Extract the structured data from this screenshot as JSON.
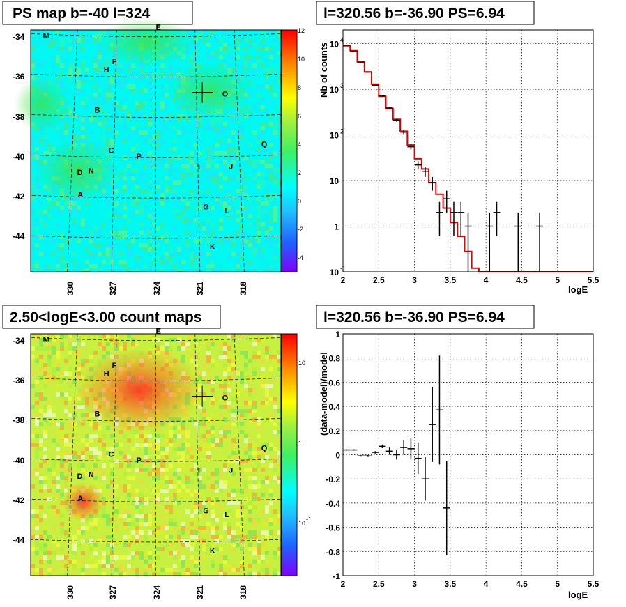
{
  "panels": {
    "top_left": {
      "title": "PS map b=-40 l=324",
      "colorbar_ticks": [
        "12",
        "10",
        "8",
        "6",
        "4",
        "2",
        "0",
        "-2",
        "-4"
      ],
      "colorbar_scale": "linear",
      "y_ticks": [
        "-34",
        "-36",
        "-38",
        "-40",
        "-42",
        "-44"
      ],
      "x_ticks": [
        "330",
        "327",
        "324",
        "321",
        "318"
      ]
    },
    "top_right": {
      "title": "l=320.56 b=-36.90 PS=6.94",
      "ylabel": "Nb of counts",
      "xlabel": "logE"
    },
    "bottom_left": {
      "title": "2.50<logE<3.00 count maps",
      "colorbar_ticks": [
        "10",
        "1",
        "10",
        "-1"
      ],
      "colorbar_scale": "log",
      "y_ticks": [
        "-34",
        "-36",
        "-38",
        "-40",
        "-42",
        "-44"
      ],
      "x_ticks": [
        "330",
        "327",
        "324",
        "321",
        "318"
      ]
    },
    "bottom_right": {
      "title": "l=320.56 b=-36.90 PS=6.94",
      "ylabel": "(data-model)/model",
      "xlabel": "logE"
    }
  },
  "sources": [
    {
      "label": "M",
      "l": 332.6,
      "b": -34.2
    },
    {
      "label": "E",
      "l": 324.0,
      "b": -33.8
    },
    {
      "label": "F",
      "l": 327.3,
      "b": -35.5
    },
    {
      "label": "H",
      "l": 327.9,
      "b": -35.9
    },
    {
      "label": "O",
      "l": 319.1,
      "b": -37.1
    },
    {
      "label": "B",
      "l": 328.5,
      "b": -37.9
    },
    {
      "label": "Q",
      "l": 316.4,
      "b": -39.6
    },
    {
      "label": "C",
      "l": 327.4,
      "b": -39.9
    },
    {
      "label": "P",
      "l": 325.4,
      "b": -40.2
    },
    {
      "label": "I",
      "l": 321.0,
      "b": -40.7
    },
    {
      "label": "J",
      "l": 318.8,
      "b": -40.7
    },
    {
      "label": "D",
      "l": 329.6,
      "b": -41.0
    },
    {
      "label": "N",
      "l": 328.8,
      "b": -40.9
    },
    {
      "label": "A",
      "l": 329.5,
      "b": -42.1
    },
    {
      "label": "G",
      "l": 320.7,
      "b": -42.7
    },
    {
      "label": "L",
      "l": 319.2,
      "b": -42.9
    },
    {
      "label": "K",
      "l": 320.3,
      "b": -44.7
    }
  ],
  "chart_data": [
    {
      "type": "heatmap",
      "title": "PS map b=-40 l=324",
      "xlabel": "",
      "ylabel": "",
      "xlim": [
        333,
        315
      ],
      "ylim": [
        -45.8,
        -33.8
      ],
      "color_range": [
        -5,
        12
      ],
      "marker": {
        "l": 320.56,
        "b": -36.9
      }
    },
    {
      "type": "line",
      "title": "l=320.56 b=-36.90 PS=6.94",
      "xlabel": "logE",
      "ylabel": "Nb of counts",
      "xlim": [
        2,
        5.5
      ],
      "ylim": [
        0.1,
        20000
      ],
      "yscale": "log",
      "x_ticks": [
        2,
        2.5,
        3,
        3.5,
        4,
        4.5,
        5,
        5.5
      ],
      "y_ticks": [
        {
          "v": 0.1,
          "label": "10",
          "exp": "-1"
        },
        {
          "v": 1,
          "label": "1",
          "exp": ""
        },
        {
          "v": 10,
          "label": "10",
          "exp": ""
        },
        {
          "v": 100,
          "label": "10",
          "exp": "2"
        },
        {
          "v": 1000,
          "label": "10",
          "exp": "3"
        },
        {
          "v": 10000,
          "label": "10",
          "exp": "4"
        }
      ],
      "grid": true,
      "series": [
        {
          "color": "#e00000",
          "bins_x": [
            2.0,
            2.1,
            2.2,
            2.3,
            2.4,
            2.5,
            2.6,
            2.7,
            2.8,
            2.9,
            3.0,
            3.1,
            3.2,
            3.3,
            3.4,
            3.5,
            3.6,
            3.7,
            3.8,
            3.9,
            4.0,
            5.5
          ],
          "values": [
            9000,
            7000,
            4000,
            2400,
            1300,
            700,
            380,
            220,
            120,
            60,
            30,
            18,
            9,
            5,
            2.5,
            1.2,
            0.6,
            0.28,
            0.12,
            0.1,
            0.1
          ]
        },
        {
          "color": "#000000",
          "points": [
            {
              "x": 2.05,
              "y": 9300,
              "lo": 9100,
              "hi": 9500
            },
            {
              "x": 2.15,
              "y": 6800,
              "lo": 6650,
              "hi": 6950
            },
            {
              "x": 2.25,
              "y": 3900,
              "lo": 3800,
              "hi": 4000
            },
            {
              "x": 2.35,
              "y": 2380,
              "lo": 2330,
              "hi": 2430
            },
            {
              "x": 2.45,
              "y": 1230,
              "lo": 1190,
              "hi": 1270
            },
            {
              "x": 2.55,
              "y": 720,
              "lo": 690,
              "hi": 750
            },
            {
              "x": 2.65,
              "y": 390,
              "lo": 370,
              "hi": 410
            },
            {
              "x": 2.75,
              "y": 210,
              "lo": 195,
              "hi": 225
            },
            {
              "x": 2.85,
              "y": 115,
              "lo": 104,
              "hi": 126
            },
            {
              "x": 2.95,
              "y": 55,
              "lo": 48,
              "hi": 62
            },
            {
              "x": 3.05,
              "y": 22,
              "lo": 17.5,
              "hi": 26.5
            },
            {
              "x": 3.15,
              "y": 16,
              "lo": 12,
              "hi": 20
            },
            {
              "x": 3.25,
              "y": 9,
              "lo": 6,
              "hi": 12
            },
            {
              "x": 3.35,
              "y": 2,
              "lo": 0.6,
              "hi": 3.4
            },
            {
              "x": 3.45,
              "y": 4,
              "lo": 2,
              "hi": 6
            },
            {
              "x": 3.55,
              "y": 2,
              "lo": 0.6,
              "hi": 3.4
            },
            {
              "x": 3.65,
              "y": 2,
              "lo": 0.6,
              "hi": 3.4
            },
            {
              "x": 3.75,
              "y": 1,
              "lo": 0.1,
              "hi": 2
            },
            {
              "x": 4.05,
              "y": 1,
              "lo": 0.1,
              "hi": 2
            },
            {
              "x": 4.15,
              "y": 2,
              "lo": 0.6,
              "hi": 3.4
            },
            {
              "x": 4.45,
              "y": 1,
              "lo": 0.1,
              "hi": 2
            },
            {
              "x": 4.75,
              "y": 1,
              "lo": 0.1,
              "hi": 2
            }
          ]
        }
      ]
    },
    {
      "type": "heatmap",
      "title": "2.50<logE<3.00 count maps",
      "xlabel": "",
      "ylabel": "",
      "xlim": [
        333,
        315
      ],
      "ylim": [
        -45.8,
        -33.8
      ],
      "color_scale": "log",
      "marker": {
        "l": 320.56,
        "b": -36.9
      }
    },
    {
      "type": "scatter",
      "title": "l=320.56 b=-36.90 PS=6.94",
      "xlabel": "logE",
      "ylabel": "(data-model)/model",
      "xlim": [
        2,
        5.5
      ],
      "ylim": [
        -1,
        1
      ],
      "x_ticks": [
        2,
        2.5,
        3,
        3.5,
        4,
        4.5,
        5,
        5.5
      ],
      "y_ticks": [
        -1,
        -0.8,
        -0.6,
        -0.4,
        -0.2,
        0,
        0.2,
        0.4,
        0.6,
        0.8,
        1
      ],
      "grid": true,
      "points": [
        {
          "x": 2.05,
          "y": 0.04,
          "lo": 0.035,
          "hi": 0.045
        },
        {
          "x": 2.15,
          "y": 0.04,
          "lo": 0.035,
          "hi": 0.045
        },
        {
          "x": 2.25,
          "y": -0.01,
          "lo": -0.016,
          "hi": -0.004
        },
        {
          "x": 2.35,
          "y": -0.01,
          "lo": -0.018,
          "hi": -0.002
        },
        {
          "x": 2.45,
          "y": 0.02,
          "lo": 0.01,
          "hi": 0.03
        },
        {
          "x": 2.55,
          "y": 0.07,
          "lo": 0.055,
          "hi": 0.085
        },
        {
          "x": 2.65,
          "y": 0.03,
          "lo": 0.0,
          "hi": 0.06
        },
        {
          "x": 2.75,
          "y": 0.0,
          "lo": -0.04,
          "hi": 0.04
        },
        {
          "x": 2.85,
          "y": 0.06,
          "lo": 0.0,
          "hi": 0.12
        },
        {
          "x": 2.95,
          "y": 0.05,
          "lo": -0.04,
          "hi": 0.14
        },
        {
          "x": 3.05,
          "y": -0.03,
          "lo": -0.16,
          "hi": 0.1
        },
        {
          "x": 3.15,
          "y": -0.2,
          "lo": -0.38,
          "hi": -0.02
        },
        {
          "x": 3.25,
          "y": 0.25,
          "lo": -0.06,
          "hi": 0.56
        },
        {
          "x": 3.35,
          "y": 0.37,
          "lo": -0.08,
          "hi": 0.82
        },
        {
          "x": 3.45,
          "y": -0.44,
          "lo": -0.83,
          "hi": -0.05
        }
      ]
    }
  ]
}
